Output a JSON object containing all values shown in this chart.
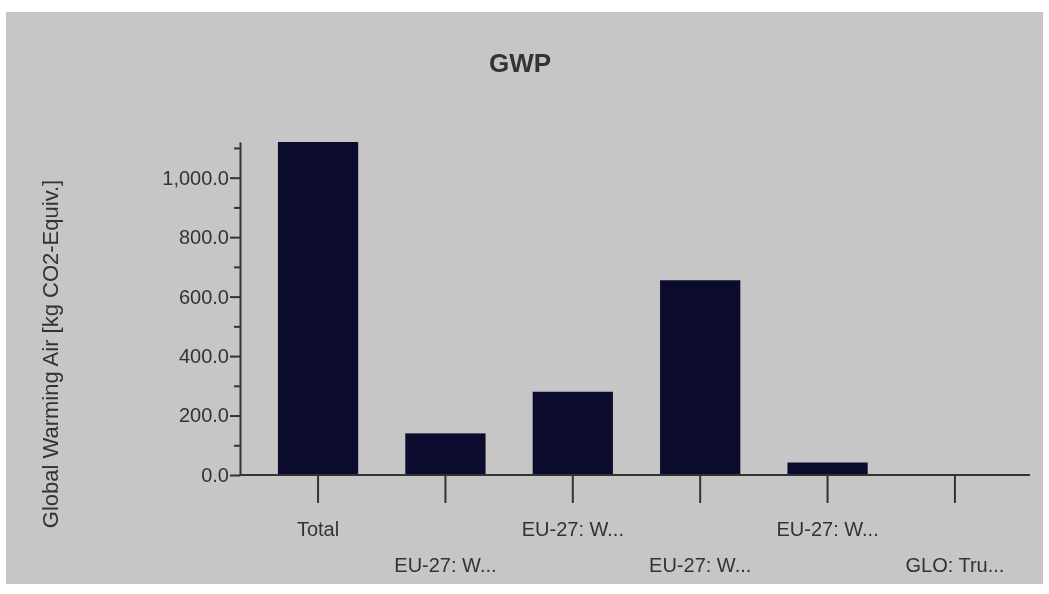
{
  "chart_data": {
    "type": "bar",
    "title": "GWP",
    "ylabel": "Global Warming Air [kg CO2-Equiv.]",
    "categories": [
      "Total",
      "EU-27: W...",
      "EU-27: W...",
      "EU-27: W...",
      "EU-27: W...",
      "GLO: Tru..."
    ],
    "values": [
      1120,
      140,
      280,
      655,
      42,
      0
    ],
    "color": "#0b0b2e",
    "ylim": [
      0,
      1120
    ],
    "yticks": [
      {
        "value": 0,
        "label": "0.0"
      },
      {
        "value": 100,
        "label": null
      },
      {
        "value": 200,
        "label": "200.0"
      },
      {
        "value": 300,
        "label": null
      },
      {
        "value": 400,
        "label": "400.0"
      },
      {
        "value": 500,
        "label": null
      },
      {
        "value": 600,
        "label": "600.0"
      },
      {
        "value": 700,
        "label": null
      },
      {
        "value": 800,
        "label": "800.0"
      },
      {
        "value": 900,
        "label": null
      },
      {
        "value": 1000,
        "label": "1,000.0"
      },
      {
        "value": 1100,
        "label": null
      }
    ],
    "grid": false
  }
}
